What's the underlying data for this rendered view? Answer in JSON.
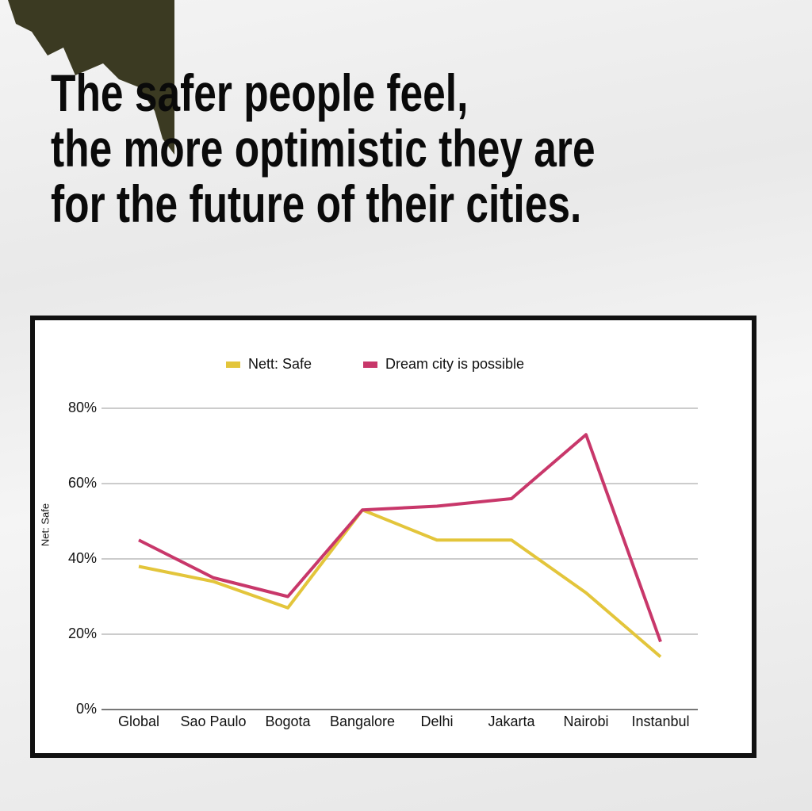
{
  "chart_data": {
    "type": "line",
    "title": "The safer people feel,\nthe more optimistic they are\nfor the future of their cities.",
    "ylabel": "Net: Safe",
    "categories": [
      "Global",
      "Sao Paulo",
      "Bogota",
      "Bangalore",
      "Delhi",
      "Jakarta",
      "Nairobi",
      "Instanbul"
    ],
    "series": [
      {
        "name": "Nett: Safe",
        "color": "#e3c53b",
        "values": [
          38,
          34,
          27,
          53,
          45,
          45,
          31,
          14
        ]
      },
      {
        "name": "Dream city is possible",
        "color": "#c8376a",
        "values": [
          45,
          35,
          30,
          53,
          54,
          56,
          73,
          18
        ]
      }
    ],
    "ylim": [
      0,
      80
    ],
    "yticks": [
      {
        "value": 0,
        "label": "0%"
      },
      {
        "value": 20,
        "label": "20%"
      },
      {
        "value": 40,
        "label": "40%"
      },
      {
        "value": 60,
        "label": "60%"
      },
      {
        "value": 80,
        "label": "80%"
      }
    ],
    "grid": true,
    "legend": "top"
  }
}
